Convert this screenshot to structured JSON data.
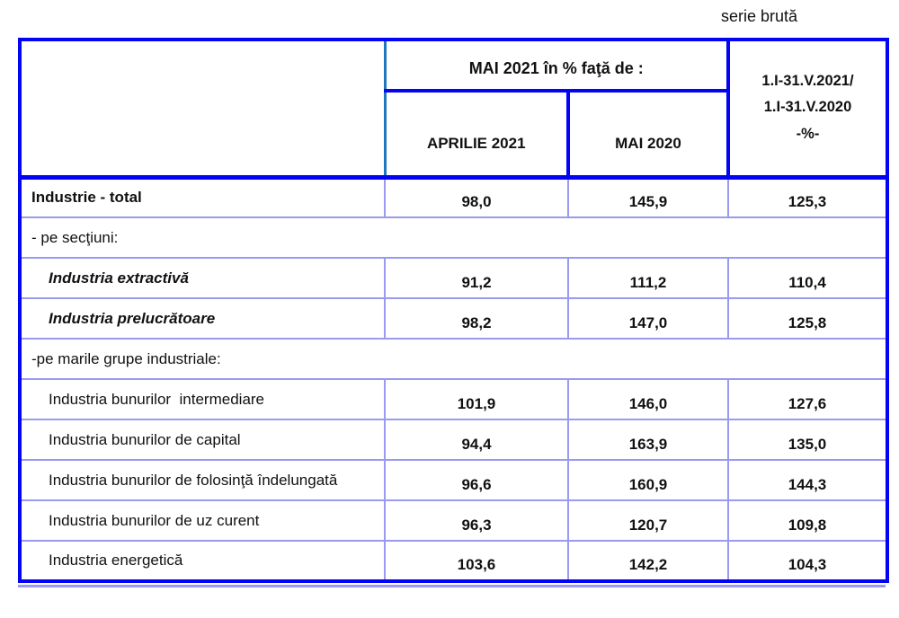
{
  "note": "serie brută",
  "colors": {
    "border_strong": "#0404f4",
    "border_light": "#9a9af0",
    "header_divider": "#1f78be",
    "text": "#111111"
  },
  "table": {
    "header": {
      "comparison_title": "MAI 2021 în % faţă de :",
      "sub_columns": [
        "APRILIE 2021",
        "MAI 2020"
      ],
      "cumulative_lines": [
        "1.I-31.V.2021/",
        "1.I-31.V.2020",
        "-%-"
      ]
    },
    "rows": [
      {
        "label": "Industrie - total",
        "style": "bold",
        "indent": 0,
        "values": [
          "98,0",
          "145,9",
          "125,3"
        ]
      },
      {
        "label": "- pe secţiuni:",
        "style": "regular",
        "indent": 0,
        "span": true
      },
      {
        "label": "Industria extractivă",
        "style": "bold-italic",
        "indent": 1,
        "values": [
          "91,2",
          "111,2",
          "110,4"
        ]
      },
      {
        "label": "Industria prelucrătoare",
        "style": "bold-italic",
        "indent": 1,
        "values": [
          "98,2",
          "147,0",
          "125,8"
        ]
      },
      {
        "label": "-pe marile grupe industriale:",
        "style": "regular",
        "indent": 0,
        "span": true
      },
      {
        "label": "Industria bunurilor  intermediare",
        "style": "regular",
        "indent": 1,
        "values": [
          "101,9",
          "146,0",
          "127,6"
        ]
      },
      {
        "label": "Industria bunurilor de capital",
        "style": "regular",
        "indent": 1,
        "values": [
          "94,4",
          "163,9",
          "135,0"
        ]
      },
      {
        "label": "Industria bunurilor de folosinţă îndelungată",
        "style": "regular",
        "indent": 1,
        "values": [
          "96,6",
          "160,9",
          "144,3"
        ]
      },
      {
        "label": "Industria bunurilor de uz curent",
        "style": "regular",
        "indent": 1,
        "values": [
          "96,3",
          "120,7",
          "109,8"
        ]
      },
      {
        "label": "Industria energetică",
        "style": "regular",
        "indent": 1,
        "values": [
          "103,6",
          "142,2",
          "104,3"
        ]
      }
    ]
  }
}
